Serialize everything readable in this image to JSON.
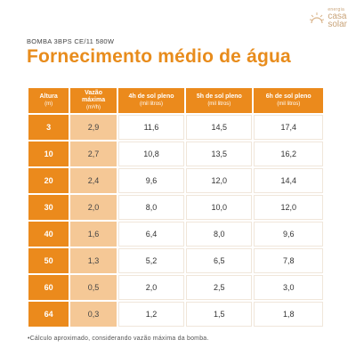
{
  "brand": {
    "small": "energia",
    "name_top": "casa",
    "name_bottom": "solar"
  },
  "subtitle": "BOMBA 3BPS CE/11 580W",
  "title": "Fornecimento médio de água",
  "table": {
    "headers": [
      {
        "label": "Altura",
        "unit": "(m)"
      },
      {
        "label": "Vazão máxima",
        "unit": "(m³/h)"
      },
      {
        "label": "4h de sol pleno",
        "unit": "(mil litros)"
      },
      {
        "label": "5h de sol pleno",
        "unit": "(mil litros)"
      },
      {
        "label": "6h de sol pleno",
        "unit": "(mil litros)"
      }
    ],
    "rows": [
      [
        "3",
        "2,9",
        "11,6",
        "14,5",
        "17,4"
      ],
      [
        "10",
        "2,7",
        "10,8",
        "13,5",
        "16,2"
      ],
      [
        "20",
        "2,4",
        "9,6",
        "12,0",
        "14,4"
      ],
      [
        "30",
        "2,0",
        "8,0",
        "10,0",
        "12,0"
      ],
      [
        "40",
        "1,6",
        "6,4",
        "8,0",
        "9,6"
      ],
      [
        "50",
        "1,3",
        "5,2",
        "6,5",
        "7,8"
      ],
      [
        "60",
        "0,5",
        "2,0",
        "2,5",
        "3,0"
      ],
      [
        "64",
        "0,3",
        "1,2",
        "1,5",
        "1,8"
      ]
    ]
  },
  "footnote": "•Cálculo aproximado, considerando vazão máxima da bomba.",
  "colors": {
    "accent": "#eb8a1c",
    "title": "#e88c1c",
    "light": "#f5c896"
  }
}
